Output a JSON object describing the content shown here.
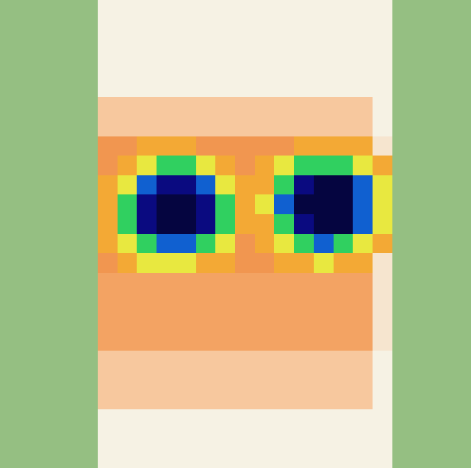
{
  "chart_data": {
    "type": "heatmap",
    "tick_labels": false,
    "zlim": [
      0,
      100
    ],
    "cells": [
      [
        5,
        5,
        5,
        5,
        5,
        12,
        12,
        12,
        12,
        12,
        12,
        12,
        12,
        12,
        12,
        12,
        12,
        12,
        12,
        12,
        5,
        5,
        5,
        5
      ],
      [
        5,
        5,
        5,
        5,
        5,
        12,
        12,
        12,
        12,
        12,
        12,
        12,
        12,
        12,
        12,
        12,
        12,
        12,
        12,
        12,
        5,
        5,
        5,
        5
      ],
      [
        5,
        5,
        5,
        5,
        5,
        12,
        12,
        12,
        12,
        12,
        12,
        12,
        12,
        12,
        12,
        12,
        12,
        12,
        12,
        12,
        5,
        5,
        5,
        5
      ],
      [
        5,
        5,
        5,
        5,
        5,
        12,
        12,
        12,
        12,
        12,
        12,
        12,
        12,
        12,
        12,
        12,
        12,
        12,
        12,
        12,
        5,
        5,
        5,
        5
      ],
      [
        5,
        5,
        5,
        5,
        5,
        12,
        12,
        12,
        12,
        12,
        12,
        12,
        12,
        12,
        12,
        12,
        12,
        12,
        12,
        12,
        5,
        5,
        5,
        5
      ],
      [
        5,
        5,
        5,
        5,
        5,
        22,
        22,
        22,
        22,
        22,
        22,
        22,
        22,
        22,
        22,
        22,
        22,
        22,
        22,
        12,
        5,
        5,
        5,
        5
      ],
      [
        5,
        5,
        5,
        5,
        5,
        22,
        22,
        22,
        22,
        22,
        22,
        22,
        22,
        22,
        22,
        22,
        22,
        22,
        22,
        12,
        5,
        5,
        5,
        5
      ],
      [
        5,
        5,
        5,
        5,
        5,
        30,
        30,
        38,
        38,
        38,
        30,
        30,
        30,
        30,
        30,
        38,
        38,
        38,
        38,
        15,
        5,
        5,
        5,
        5
      ],
      [
        5,
        5,
        5,
        5,
        5,
        30,
        38,
        50,
        65,
        65,
        50,
        38,
        30,
        38,
        50,
        65,
        65,
        65,
        50,
        38,
        5,
        5,
        5,
        5
      ],
      [
        5,
        5,
        5,
        5,
        5,
        38,
        50,
        80,
        95,
        95,
        80,
        50,
        38,
        38,
        65,
        95,
        100,
        100,
        80,
        50,
        5,
        5,
        5,
        5
      ],
      [
        5,
        5,
        5,
        5,
        5,
        38,
        65,
        95,
        100,
        100,
        95,
        65,
        38,
        50,
        80,
        100,
        100,
        100,
        80,
        50,
        5,
        5,
        5,
        5
      ],
      [
        5,
        5,
        5,
        5,
        5,
        38,
        65,
        95,
        100,
        100,
        95,
        65,
        38,
        38,
        65,
        95,
        100,
        100,
        80,
        50,
        5,
        5,
        5,
        5
      ],
      [
        5,
        5,
        5,
        5,
        5,
        38,
        50,
        65,
        80,
        80,
        65,
        50,
        30,
        38,
        50,
        65,
        80,
        65,
        50,
        38,
        5,
        5,
        5,
        5
      ],
      [
        5,
        5,
        5,
        5,
        5,
        30,
        38,
        50,
        50,
        50,
        38,
        38,
        30,
        30,
        38,
        38,
        50,
        38,
        38,
        15,
        5,
        5,
        5,
        5
      ],
      [
        5,
        5,
        5,
        5,
        5,
        28,
        28,
        28,
        28,
        28,
        28,
        28,
        28,
        28,
        28,
        28,
        28,
        28,
        28,
        15,
        5,
        5,
        5,
        5
      ],
      [
        5,
        5,
        5,
        5,
        5,
        28,
        28,
        28,
        28,
        28,
        28,
        28,
        28,
        28,
        28,
        28,
        28,
        28,
        28,
        15,
        5,
        5,
        5,
        5
      ],
      [
        5,
        5,
        5,
        5,
        5,
        28,
        28,
        28,
        28,
        28,
        28,
        28,
        28,
        28,
        28,
        28,
        28,
        28,
        28,
        15,
        5,
        5,
        5,
        5
      ],
      [
        5,
        5,
        5,
        5,
        5,
        28,
        28,
        28,
        28,
        28,
        28,
        28,
        28,
        28,
        28,
        28,
        28,
        28,
        28,
        15,
        5,
        5,
        5,
        5
      ],
      [
        5,
        5,
        5,
        5,
        5,
        22,
        22,
        22,
        22,
        22,
        22,
        22,
        22,
        22,
        22,
        22,
        22,
        22,
        22,
        12,
        5,
        5,
        5,
        5
      ],
      [
        5,
        5,
        5,
        5,
        5,
        22,
        22,
        22,
        22,
        22,
        22,
        22,
        22,
        22,
        22,
        22,
        22,
        22,
        22,
        12,
        5,
        5,
        5,
        5
      ],
      [
        5,
        5,
        5,
        5,
        5,
        22,
        22,
        22,
        22,
        22,
        22,
        22,
        22,
        22,
        22,
        22,
        22,
        22,
        22,
        12,
        5,
        5,
        5,
        5
      ],
      [
        5,
        5,
        5,
        5,
        5,
        12,
        12,
        12,
        12,
        12,
        12,
        12,
        12,
        12,
        12,
        12,
        12,
        12,
        12,
        12,
        5,
        5,
        5,
        5
      ],
      [
        5,
        5,
        5,
        5,
        5,
        12,
        12,
        12,
        12,
        12,
        12,
        12,
        12,
        12,
        12,
        12,
        12,
        12,
        12,
        12,
        5,
        5,
        5,
        5
      ],
      [
        5,
        5,
        5,
        5,
        5,
        12,
        12,
        12,
        12,
        12,
        12,
        12,
        12,
        12,
        12,
        12,
        12,
        12,
        12,
        12,
        5,
        5,
        5,
        5
      ]
    ]
  }
}
